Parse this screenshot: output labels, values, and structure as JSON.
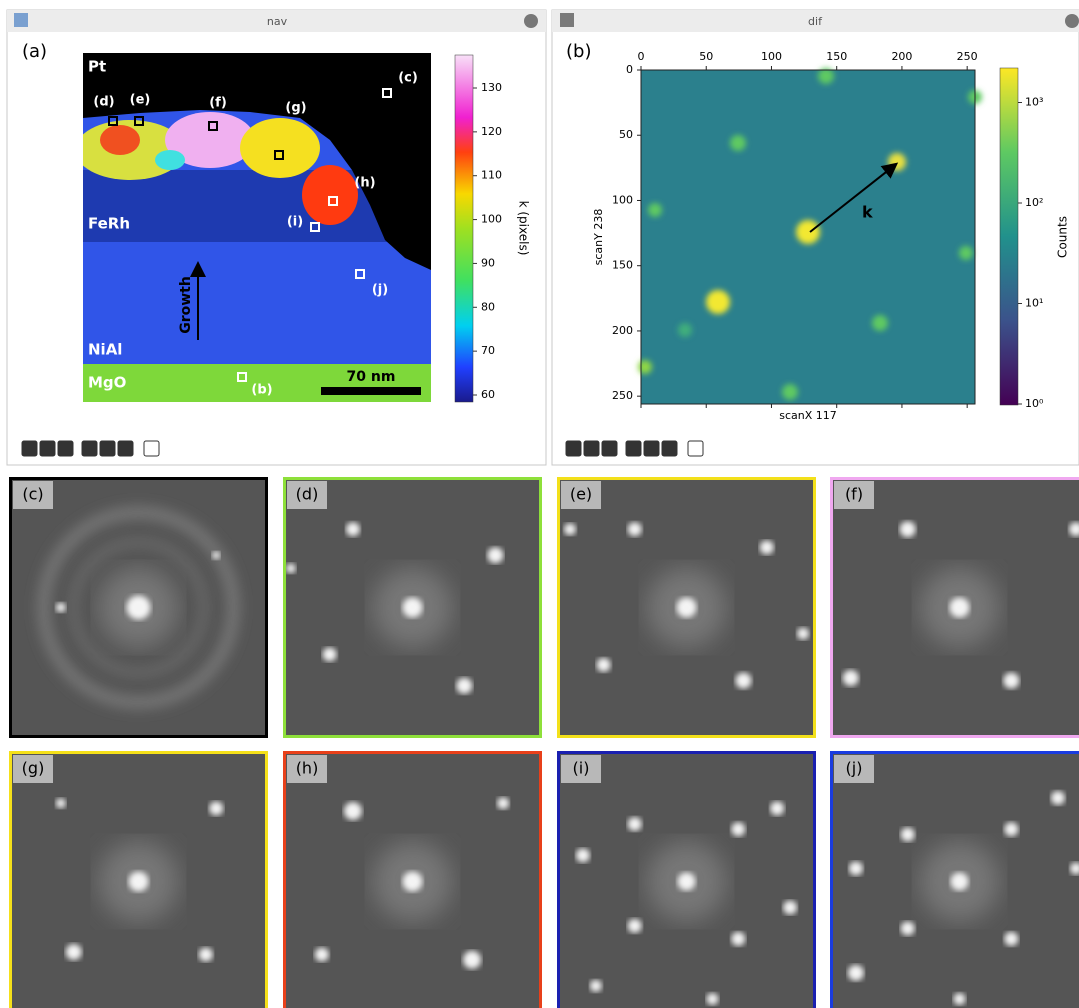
{
  "nav": {
    "title": "nav",
    "panel_label": "(a)",
    "regions": [
      "Pt",
      "FeRh",
      "NiAl",
      "MgO"
    ],
    "arrow_label": "Growth",
    "scale_bar": "70 nm",
    "points": [
      "(b)",
      "(c)",
      "(d)",
      "(e)",
      "(f)",
      "(g)",
      "(h)",
      "(i)",
      "(j)"
    ],
    "colorbar": {
      "label": "k (pixels)",
      "ticks": [
        60,
        70,
        80,
        90,
        100,
        110,
        120,
        130
      ]
    }
  },
  "dif": {
    "title": "dif",
    "panel_label": "(b)",
    "x_label": "scanX 117",
    "y_label": "scanY 238",
    "vector_label": "k",
    "x_ticks": [
      0,
      50,
      100,
      150,
      200,
      250
    ],
    "y_ticks": [
      0,
      50,
      100,
      150,
      200,
      250
    ],
    "colorbar": {
      "label": "Counts",
      "ticks": [
        "10⁰",
        "10¹",
        "10²",
        "10³"
      ]
    }
  },
  "patterns": [
    {
      "label": "(c)",
      "border": "#000000"
    },
    {
      "label": "(d)",
      "border": "#8ee03a"
    },
    {
      "label": "(e)",
      "border": "#f3e01a"
    },
    {
      "label": "(f)",
      "border": "#f0a8f0"
    },
    {
      "label": "(g)",
      "border": "#f5e01a"
    },
    {
      "label": "(h)",
      "border": "#e8401a"
    },
    {
      "label": "(i)",
      "border": "#1a20b0"
    },
    {
      "label": "(j)",
      "border": "#1a3ce0"
    }
  ]
}
